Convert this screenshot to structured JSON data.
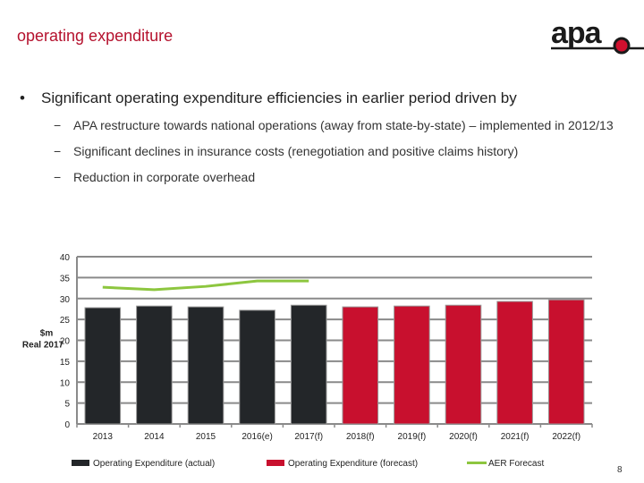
{
  "title": "operating expenditure",
  "logo": {
    "text": "apa",
    "colors": {
      "text": "#1a1a1a",
      "dot": "#d0102e"
    }
  },
  "bullet": {
    "marker": "•",
    "text": "Significant operating expenditure efficiencies in earlier period driven by"
  },
  "subbullets": [
    {
      "marker": "−",
      "text": "APA restructure towards national operations (away from state-by-state) – implemented in 2012/13"
    },
    {
      "marker": "−",
      "text": "Significant declines in insurance costs (renegotiation and positive claims history)"
    },
    {
      "marker": "−",
      "text": "Reduction in corporate overhead"
    }
  ],
  "page_number": "8",
  "chart_data": {
    "type": "bar",
    "ylabel": "$m Real 2017",
    "ylim": [
      0,
      40
    ],
    "yticks": [
      0,
      5,
      10,
      15,
      20,
      25,
      30,
      35,
      40
    ],
    "grid": true,
    "legend_placement": "bottom",
    "categories": [
      "2013",
      "2014",
      "2015",
      "2016(e)",
      "2017(f)",
      "2018(f)",
      "2019(f)",
      "2020(f)",
      "2021(f)",
      "2022(f)"
    ],
    "series": [
      {
        "name": "Operating Expenditure (actual)",
        "type": "bar",
        "color": "#232629",
        "values": [
          27.8,
          28.2,
          28.0,
          27.2,
          28.4,
          null,
          null,
          null,
          null,
          null
        ]
      },
      {
        "name": "Operating Expenditure (forecast)",
        "type": "bar",
        "color": "#c8102e",
        "values": [
          null,
          null,
          null,
          null,
          null,
          28.0,
          28.2,
          28.4,
          29.3,
          29.7
        ]
      },
      {
        "name": "AER Forecast",
        "type": "line",
        "color": "#8dc63f",
        "values": [
          32.7,
          32.1,
          32.9,
          34.2,
          34.2,
          null,
          null,
          null,
          null,
          null
        ]
      }
    ]
  }
}
